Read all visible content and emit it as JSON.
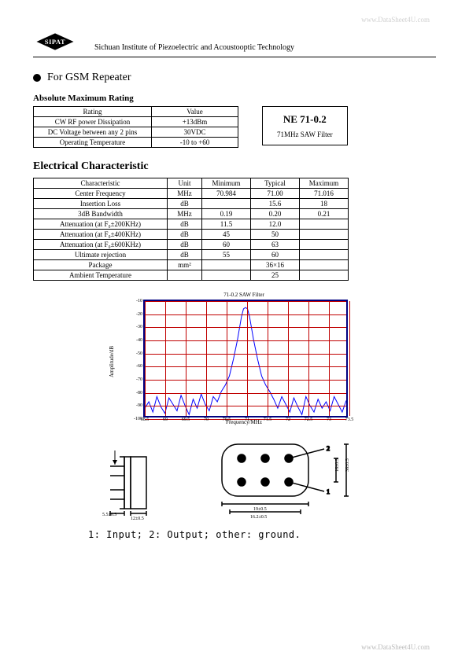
{
  "watermark_top": "www.DataSheet4U.com",
  "watermark_bottom": "www.DataSheet4U.com",
  "logo_text": "SIPAT",
  "institute": "Sichuan Institute of Piezoelectric and Acoustooptic Technology",
  "application": "For GSM Repeater",
  "abs_max_title": "Absolute Maximum Rating",
  "abs_max": {
    "headers": [
      "Rating",
      "Value"
    ],
    "rows": [
      [
        "CW RF power Dissipation",
        "+13dBm"
      ],
      [
        "DC Voltage between any 2 pins",
        "30VDC"
      ],
      [
        "Operating Temperature",
        "-10 to +60"
      ]
    ]
  },
  "part_box": {
    "number": "NE 71-0.2",
    "desc": "71MHz SAW Filter"
  },
  "elec_title": "Electrical Characteristic",
  "elec": {
    "headers": [
      "Characteristic",
      "Unit",
      "Minimum",
      "Typical",
      "Maximum"
    ],
    "rows": [
      [
        "Center Frequency",
        "MHz",
        "70.984",
        "71.00",
        "71.016"
      ],
      [
        "Insertion Loss",
        "dB",
        "",
        "15.6",
        "18"
      ],
      [
        "3dB Bandwidth",
        "MHz",
        "0.19",
        "0.20",
        "0.21"
      ],
      [
        "Attenuation (at F₀±200KHz)",
        "dB",
        "11.5",
        "12.0",
        ""
      ],
      [
        "Attenuation (at F₀±400KHz)",
        "dB",
        "45",
        "50",
        ""
      ],
      [
        "Attenuation (at F₀±600KHz)",
        "dB",
        "60",
        "63",
        ""
      ],
      [
        "Ultimate rejection",
        "dB",
        "55",
        "60",
        ""
      ],
      [
        "Package",
        "mm²",
        "",
        "36×16",
        ""
      ],
      [
        "Ambient Temperature",
        "",
        "",
        "25",
        ""
      ]
    ]
  },
  "chart": {
    "title": "71-0.2 SAW Filter",
    "ylabel": "Amplitude/dB",
    "xlabel": "Frequency/MHz",
    "ylim": [
      -100,
      -10
    ],
    "ytick_step": 10,
    "xlim": [
      68.5,
      73.5
    ],
    "xticks": [
      68.5,
      69,
      69.5,
      70,
      70.5,
      71,
      71.5,
      72,
      72.5,
      73,
      73.5
    ],
    "grid_color": "#c00000",
    "border_color": "#000080",
    "trace_color": "#0000ff",
    "background": "#ffffff",
    "trace_points": [
      [
        68.5,
        -93
      ],
      [
        68.6,
        -88
      ],
      [
        68.7,
        -96
      ],
      [
        68.8,
        -84
      ],
      [
        68.9,
        -92
      ],
      [
        69.0,
        -97
      ],
      [
        69.1,
        -85
      ],
      [
        69.2,
        -90
      ],
      [
        69.3,
        -95
      ],
      [
        69.4,
        -83
      ],
      [
        69.5,
        -91
      ],
      [
        69.6,
        -98
      ],
      [
        69.7,
        -86
      ],
      [
        69.8,
        -93
      ],
      [
        69.9,
        -82
      ],
      [
        70.0,
        -90
      ],
      [
        70.1,
        -95
      ],
      [
        70.2,
        -84
      ],
      [
        70.3,
        -88
      ],
      [
        70.4,
        -80
      ],
      [
        70.5,
        -75
      ],
      [
        70.6,
        -68
      ],
      [
        70.7,
        -55
      ],
      [
        70.8,
        -40
      ],
      [
        70.9,
        -22
      ],
      [
        70.95,
        -16
      ],
      [
        71.0,
        -15
      ],
      [
        71.05,
        -16
      ],
      [
        71.1,
        -22
      ],
      [
        71.2,
        -40
      ],
      [
        71.3,
        -55
      ],
      [
        71.4,
        -68
      ],
      [
        71.5,
        -75
      ],
      [
        71.6,
        -80
      ],
      [
        71.7,
        -86
      ],
      [
        71.8,
        -93
      ],
      [
        71.9,
        -84
      ],
      [
        72.0,
        -90
      ],
      [
        72.1,
        -96
      ],
      [
        72.2,
        -85
      ],
      [
        72.3,
        -92
      ],
      [
        72.4,
        -98
      ],
      [
        72.5,
        -84
      ],
      [
        72.6,
        -91
      ],
      [
        72.7,
        -96
      ],
      [
        72.8,
        -86
      ],
      [
        72.9,
        -93
      ],
      [
        73.0,
        -88
      ],
      [
        73.1,
        -95
      ],
      [
        73.2,
        -84
      ],
      [
        73.3,
        -90
      ],
      [
        73.4,
        -96
      ],
      [
        73.5,
        -87
      ]
    ]
  },
  "package": {
    "dims": {
      "side_pin_len": "5.5±0.5",
      "side_body": "12±0.5",
      "top_len": "19±0.5",
      "top_inner": "16.2±0.5",
      "top_height": "16±0.5",
      "top_height_outer": "36±0.5"
    },
    "legend": "1: Input; 2: Output; other: ground."
  }
}
